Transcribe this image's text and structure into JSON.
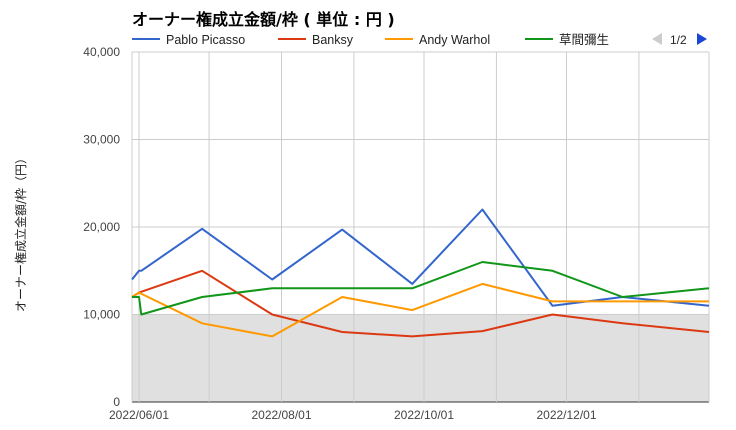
{
  "chart_data": {
    "type": "line",
    "title": "オーナー権成立金額/枠 ( 単位 : 円 )",
    "ylabel": "オーナー権成立金額/枠（円）",
    "xlabel": "",
    "ylim": [
      0,
      40000
    ],
    "yticks": [
      "0",
      "10,000",
      "20,000",
      "30,000",
      "40,000"
    ],
    "ytick_values": [
      0,
      10000,
      20000,
      30000,
      40000
    ],
    "xlim": [
      "2022-05-29",
      "2023-01-31"
    ],
    "xticks": [
      "2022/06/01",
      "2022/08/01",
      "2022/10/01",
      "2022/12/01"
    ],
    "xtick_dates": [
      "2022-06-01",
      "2022-08-01",
      "2022-10-01",
      "2022-12-01"
    ],
    "x_gridlines": [
      "2022-06-01",
      "2022-07-01",
      "2022-08-01",
      "2022-09-01",
      "2022-10-01",
      "2022-11-01",
      "2022-12-01",
      "2023-01-01"
    ],
    "shaded_band": {
      "from": 0,
      "to": 10000,
      "color": "#e0e0e0"
    },
    "grid": true,
    "legend_position": "top",
    "pager": {
      "text": "1/2",
      "prev_icon": "triangle-left-icon",
      "next_icon": "triangle-right-icon"
    },
    "series": [
      {
        "name": "Pablo Picasso",
        "color": "#3366cc",
        "points": [
          [
            "2022-05-29",
            14000
          ],
          [
            "2022-06-01",
            15000
          ],
          [
            "2022-06-02",
            15000
          ],
          [
            "2022-06-28",
            19800
          ],
          [
            "2022-07-28",
            14000
          ],
          [
            "2022-08-27",
            19700
          ],
          [
            "2022-09-26",
            13500
          ],
          [
            "2022-10-26",
            22000
          ],
          [
            "2022-11-25",
            11000
          ],
          [
            "2022-12-25",
            12000
          ],
          [
            "2023-01-31",
            11000
          ]
        ]
      },
      {
        "name": "Banksy",
        "color": "#dc3912",
        "points": [
          [
            "2022-05-29",
            12000
          ],
          [
            "2022-06-01",
            12500
          ],
          [
            "2022-06-28",
            15000
          ],
          [
            "2022-07-28",
            10000
          ],
          [
            "2022-08-27",
            8000
          ],
          [
            "2022-09-26",
            7500
          ],
          [
            "2022-10-26",
            8100
          ],
          [
            "2022-11-25",
            10000
          ],
          [
            "2022-12-25",
            9000
          ],
          [
            "2023-01-31",
            8000
          ]
        ]
      },
      {
        "name": "Andy Warhol",
        "color": "#ff9900",
        "points": [
          [
            "2022-05-29",
            12000
          ],
          [
            "2022-06-01",
            12500
          ],
          [
            "2022-06-28",
            9000
          ],
          [
            "2022-07-28",
            7500
          ],
          [
            "2022-08-27",
            12000
          ],
          [
            "2022-09-26",
            10500
          ],
          [
            "2022-10-26",
            13500
          ],
          [
            "2022-11-25",
            11500
          ],
          [
            "2022-12-25",
            11500
          ],
          [
            "2023-01-31",
            11500
          ]
        ]
      },
      {
        "name": "草間彌生",
        "color": "#109618",
        "points": [
          [
            "2022-05-29",
            12000
          ],
          [
            "2022-06-01",
            12000
          ],
          [
            "2022-06-02",
            10000
          ],
          [
            "2022-06-28",
            12000
          ],
          [
            "2022-07-28",
            13000
          ],
          [
            "2022-08-27",
            13000
          ],
          [
            "2022-09-26",
            13000
          ],
          [
            "2022-10-26",
            16000
          ],
          [
            "2022-11-25",
            15000
          ],
          [
            "2022-12-25",
            12000
          ],
          [
            "2023-01-31",
            13000
          ]
        ]
      }
    ]
  }
}
